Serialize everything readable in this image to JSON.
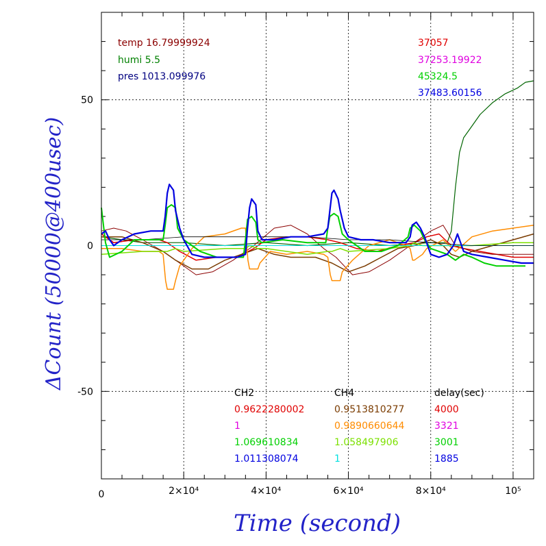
{
  "chart_data": {
    "type": "line",
    "xlabel": "Time (second)",
    "ylabel": "ΔCount (50000@400usec)",
    "xlim": [
      0,
      105000
    ],
    "ylim": [
      -80,
      80
    ],
    "grid": true,
    "x_ticks": [
      {
        "value": 0,
        "label": "0"
      },
      {
        "value": 20000,
        "label": "2×10⁴"
      },
      {
        "value": 40000,
        "label": "4×10⁴"
      },
      {
        "value": 60000,
        "label": "6×10⁴"
      },
      {
        "value": 80000,
        "label": "8×10⁴"
      },
      {
        "value": 100000,
        "label": "10⁵"
      }
    ],
    "y_ticks": [
      {
        "value": 50,
        "label": "50"
      },
      {
        "value": 0,
        "label": "0"
      },
      {
        "value": -50,
        "label": "-50"
      }
    ],
    "env": [
      {
        "text": "temp 16.79999924",
        "color": "#8b0000"
      },
      {
        "text": "humi 5.5",
        "color": "#008000"
      },
      {
        "text": "pres 1013.099976",
        "color": "#000080"
      }
    ],
    "right_values": [
      {
        "text": "37057",
        "color": "#e00000"
      },
      {
        "text": "37253.19922",
        "color": "#e000e0"
      },
      {
        "text": "45324.5",
        "color": "#00d000"
      },
      {
        "text": "37483.60156",
        "color": "#0000e0"
      }
    ],
    "legend_columns": [
      {
        "header": "CH2",
        "entries": [
          {
            "text": "0.9622280002",
            "color": "#e00000"
          },
          {
            "text": "1",
            "color": "#e000e0"
          },
          {
            "text": "1.069610834",
            "color": "#00d000"
          },
          {
            "text": "1.011308074",
            "color": "#0000e0"
          }
        ]
      },
      {
        "header": "CH4",
        "entries": [
          {
            "text": "0.9513810277",
            "color": "#7a3b00"
          },
          {
            "text": "0.9890660644",
            "color": "#ff8c00"
          },
          {
            "text": "1.058497906",
            "color": "#7ce000"
          },
          {
            "text": "1",
            "color": "#00e0e0"
          }
        ]
      },
      {
        "header": "delay(sec)",
        "entries": [
          {
            "text": "4000",
            "color": "#e00000"
          },
          {
            "text": "3321",
            "color": "#e000e0"
          },
          {
            "text": "3001",
            "color": "#00d000"
          },
          {
            "text": "1885",
            "color": "#0000e0"
          }
        ]
      }
    ],
    "series": [
      {
        "color": "#006400",
        "width": 1.2,
        "x": [
          0,
          5000,
          10000,
          20000,
          30000,
          40000,
          50000,
          60000,
          70000,
          80000,
          84000,
          85000,
          86000,
          87000,
          88000,
          90000,
          92000,
          95000,
          98000,
          101000,
          103000,
          105000
        ],
        "y": [
          3,
          2,
          1,
          1,
          0,
          1,
          0,
          1,
          0,
          1,
          1,
          5,
          20,
          32,
          37,
          41,
          45,
          49,
          52,
          54,
          56,
          56.5
        ]
      },
      {
        "color": "#e00000",
        "width": 1.5,
        "x": [
          0,
          3000,
          8000,
          14000,
          16000,
          19000,
          23000,
          28000,
          33000,
          37000,
          40000,
          45000,
          50000,
          55000,
          58000,
          62000,
          67000,
          72000,
          76000,
          79000,
          82000,
          85000,
          88000,
          92000,
          96000,
          100000,
          105000
        ],
        "y": [
          4,
          1,
          2,
          2,
          1,
          -2,
          -5,
          -4,
          -4,
          -1,
          2,
          3,
          3,
          2,
          1,
          -1,
          -2,
          0,
          1,
          3,
          4,
          0,
          -1,
          -2,
          -3,
          -4,
          -4
        ]
      },
      {
        "color": "#8b0000",
        "width": 1.0,
        "x": [
          0,
          3000,
          6000,
          10000,
          15000,
          19000,
          23000,
          27000,
          32000,
          37000,
          42000,
          46000,
          50000,
          54000,
          57000,
          61000,
          65000,
          70000,
          75000,
          80000,
          83000,
          86000,
          90000,
          95000,
          100000,
          105000
        ],
        "y": [
          5,
          6,
          5,
          2,
          -2,
          -6,
          -10,
          -9,
          -5,
          0,
          6,
          7,
          4,
          -1,
          -4,
          -10,
          -9,
          -5,
          0,
          5,
          7,
          0,
          -2,
          -3,
          -3,
          -3
        ]
      },
      {
        "color": "#7a3b00",
        "width": 1.5,
        "x": [
          0,
          5000,
          10000,
          15000,
          18000,
          22000,
          26000,
          30000,
          34000,
          38000,
          42000,
          46000,
          52000,
          56000,
          60000,
          64000,
          68000,
          72000,
          76000,
          80000,
          83000,
          85000,
          87000,
          90000,
          95000,
          100000,
          105000
        ],
        "y": [
          3,
          3,
          1,
          -2,
          -5,
          -8,
          -8,
          -5,
          -3,
          -1,
          -3,
          -4,
          -4,
          -6,
          -9,
          -7,
          -4,
          -1,
          0,
          2,
          0,
          -3,
          -4,
          -2,
          0,
          2,
          4
        ]
      },
      {
        "color": "#ff8c00",
        "width": 1.5,
        "x": [
          0,
          5000,
          10000,
          14000,
          15000,
          15600,
          16000,
          17500,
          18000,
          19000,
          22000,
          25000,
          30000,
          34000,
          35000,
          35600,
          36000,
          38000,
          38500,
          41000,
          45000,
          50000,
          54000,
          55000,
          55600,
          56000,
          58000,
          58500,
          61000,
          65000,
          70000,
          74000,
          75000,
          75600,
          76000,
          78000,
          79000,
          83000,
          86000,
          90000,
          95000,
          100000,
          105000
        ],
        "y": [
          -1,
          -1,
          -2,
          -2,
          -3,
          -12,
          -15,
          -15,
          -12,
          -7,
          -1,
          3,
          4,
          6,
          6,
          -5,
          -8,
          -8,
          -6,
          -2,
          -3,
          -2,
          -3,
          -4,
          -10,
          -12,
          -12,
          -9,
          -5,
          0,
          2,
          0,
          -1,
          -5,
          -5,
          -3,
          -1,
          2,
          -2,
          3,
          5,
          6,
          7
        ]
      },
      {
        "color": "#7ce000",
        "width": 1.5,
        "x": [
          0,
          10000,
          15000,
          16000,
          18000,
          20000,
          30000,
          35000,
          36000,
          38000,
          40000,
          50000,
          55000,
          56000,
          58000,
          60000,
          70000,
          75000,
          76000,
          78000,
          80000,
          90000,
          100000,
          105000
        ],
        "y": [
          -3,
          -2,
          -2,
          -2,
          -1,
          -2,
          -1,
          -1,
          0,
          -1,
          -1,
          -3,
          -2,
          -2,
          -1,
          -2,
          -1,
          0,
          1,
          0,
          0,
          0,
          1,
          1
        ]
      },
      {
        "color": "#e000e0",
        "width": 1.0,
        "x": [
          0,
          20000,
          40000,
          60000,
          80000,
          105000
        ],
        "y": [
          0,
          0,
          0,
          0,
          0,
          0
        ]
      },
      {
        "color": "#00e0e0",
        "width": 1.0,
        "x": [
          0,
          105000
        ],
        "y": [
          0,
          0
        ]
      },
      {
        "color": "#000000",
        "width": 0.8,
        "x": [
          0,
          10000,
          20000,
          30000,
          40000,
          50000,
          60000,
          70000,
          80000,
          90000,
          100000,
          105000
        ],
        "y": [
          2,
          2,
          3,
          3,
          3,
          3,
          2,
          2,
          1,
          0,
          0,
          0
        ]
      },
      {
        "color": "#00d000",
        "width": 2.0,
        "x": [
          0,
          1000,
          2000,
          5000,
          8000,
          12000,
          15000,
          15500,
          16000,
          17000,
          18000,
          18500,
          20000,
          24000,
          28000,
          32000,
          34500,
          35000,
          35500,
          36500,
          37500,
          38000,
          39000,
          44000,
          50000,
          54500,
          55000,
          55500,
          56500,
          57500,
          58500,
          60000,
          64000,
          68000,
          72000,
          74500,
          75000,
          76000,
          77500,
          78500,
          80000,
          82000,
          84000,
          86000,
          88000,
          90000,
          93000,
          96000,
          100000,
          103000
        ],
        "y": [
          13,
          1,
          -4,
          -2,
          2,
          2,
          2,
          7,
          13,
          14,
          13,
          6,
          2,
          -2,
          -4,
          -4,
          -4,
          2,
          9,
          10,
          8,
          2,
          1,
          2,
          1,
          1,
          6,
          10,
          11,
          10,
          4,
          2,
          -2,
          -2,
          0,
          3,
          6,
          7,
          5,
          2,
          -1,
          -2,
          -3,
          -5,
          -3,
          -4,
          -6,
          -7,
          -7,
          -7
        ]
      },
      {
        "color": "#0000e0",
        "width": 2.2,
        "x": [
          0,
          1000,
          2000,
          3000,
          5000,
          8000,
          12000,
          15000,
          15500,
          16000,
          16500,
          17500,
          18000,
          19000,
          20000,
          22000,
          25000,
          30000,
          33000,
          35000,
          35500,
          36000,
          36500,
          37500,
          38000,
          39000,
          42000,
          46000,
          50000,
          54000,
          55000,
          55500,
          56000,
          56500,
          57500,
          58000,
          59000,
          60000,
          63000,
          66000,
          70000,
          74000,
          75000,
          75500,
          76500,
          77500,
          78500,
          80000,
          82000,
          84000,
          85500,
          86500,
          88000,
          90000,
          94000,
          98000,
          102000,
          105000
        ],
        "y": [
          4,
          5,
          2,
          0,
          2,
          4,
          5,
          5,
          10,
          18,
          21,
          19,
          12,
          6,
          2,
          -3,
          -4,
          -4,
          -4,
          -3,
          6,
          13,
          16,
          14,
          5,
          2,
          2,
          3,
          3,
          4,
          6,
          12,
          18,
          19,
          16,
          12,
          6,
          3,
          2,
          2,
          1,
          1,
          3,
          7,
          8,
          6,
          3,
          -3,
          -4,
          -3,
          0,
          4,
          -2,
          -3,
          -4,
          -5,
          -6,
          -6
        ]
      }
    ]
  }
}
